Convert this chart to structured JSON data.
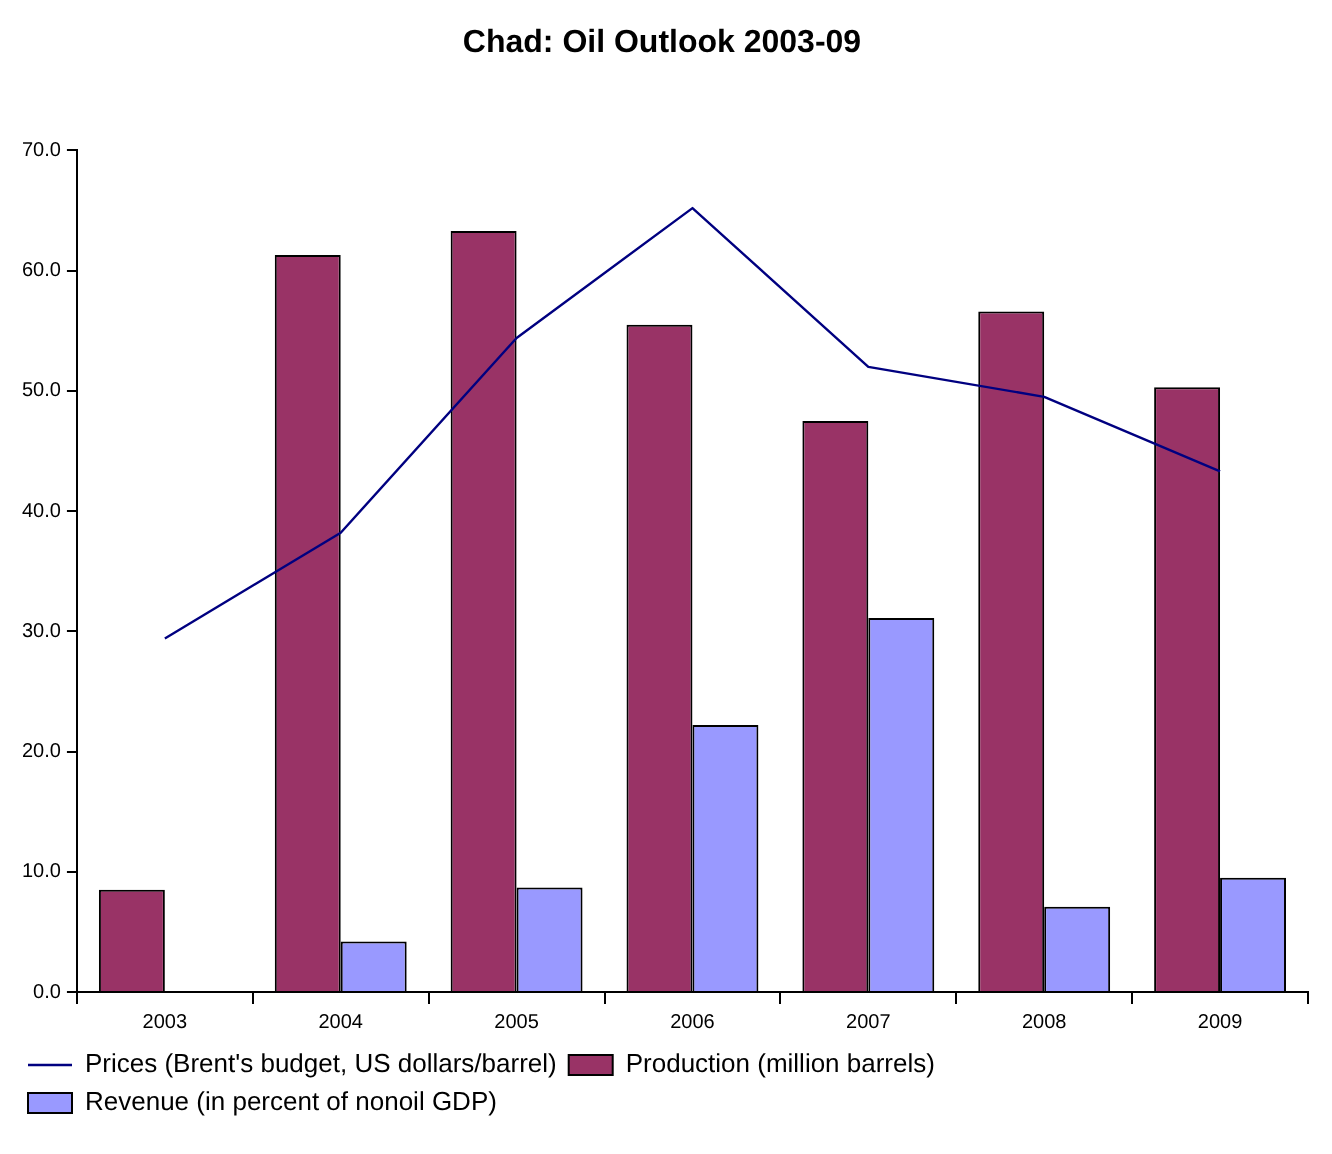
{
  "chart_data": {
    "type": "bar",
    "title": "Chad: Oil Outlook 2003-09",
    "categories": [
      "2003",
      "2004",
      "2005",
      "2006",
      "2007",
      "2008",
      "2009"
    ],
    "series": [
      {
        "name": "Production (million barrels)",
        "color": "#993366",
        "values": [
          8.5,
          61.3,
          63.3,
          55.5,
          47.5,
          56.6,
          50.3
        ]
      },
      {
        "name": "Revenue (in percent of nonoil GDP)",
        "color": "#9999ff",
        "values": [
          null,
          4.2,
          8.7,
          22.2,
          31.1,
          7.1,
          9.5
        ]
      },
      {
        "name": "Prices (Brent's budget, US dollars/barrel)",
        "type": "line",
        "color": "#000080",
        "values": [
          29.4,
          38.2,
          54.4,
          65.2,
          52.0,
          49.5,
          43.3
        ]
      }
    ],
    "ylim": [
      0,
      70
    ],
    "yticks": [
      {
        "value": 0,
        "label": "0.0"
      },
      {
        "value": 10,
        "label": "10.0"
      },
      {
        "value": 20,
        "label": "20.0"
      },
      {
        "value": 30,
        "label": "30.0"
      },
      {
        "value": 40,
        "label": "40.0"
      },
      {
        "value": 50,
        "label": "50.0"
      },
      {
        "value": 60,
        "label": "60.0"
      },
      {
        "value": 70,
        "label": "70.0"
      }
    ],
    "grid": false,
    "legend": "bottom",
    "marker": "none"
  }
}
